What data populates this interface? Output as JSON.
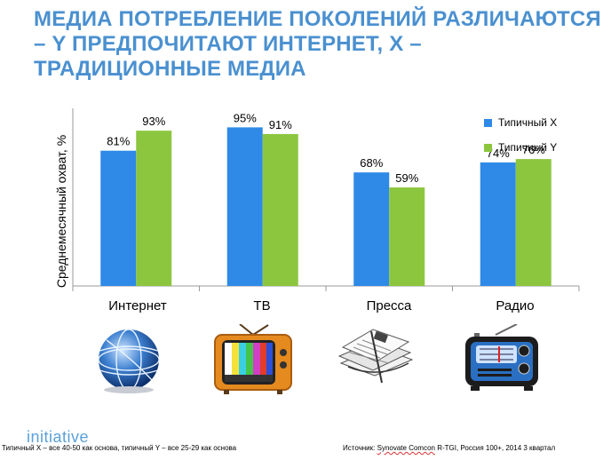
{
  "title": "МЕДИА ПОТРЕБЛЕНИЕ ПОКОЛЕНИЙ РАЗЛИЧАЮТСЯ – Y ПРЕДПОЧИТАЮТ ИНТЕРНЕТ, X – ТРАДИЦИОННЫЕ МЕДИА",
  "chart_data": {
    "type": "bar",
    "ylabel": "Среднемесячный охват, %",
    "categories": [
      "Интернет",
      "ТВ",
      "Пресса",
      "Радио"
    ],
    "ylim": [
      0,
      100
    ],
    "grid": false,
    "legend_position": "top-right",
    "series": [
      {
        "name": "Типичный X",
        "color": "#2e8ae6",
        "values": [
          81,
          95,
          68,
          74
        ],
        "labels": [
          "81%",
          "95%",
          "68%",
          "74%"
        ]
      },
      {
        "name": "Типичный Y",
        "color": "#8cc63f",
        "values": [
          93,
          91,
          59,
          76
        ],
        "labels": [
          "93%",
          "91%",
          "59%",
          "76%"
        ]
      }
    ]
  },
  "icons": [
    "globe-icon",
    "tv-icon",
    "newspaper-icon",
    "radio-icon"
  ],
  "logo": "initiative",
  "footnote_left": "Типичный X – все 40-50 как основа, типичный Y – все 25-29 как основа",
  "footnote_right_prefix": "Источник: ",
  "footnote_right_source": "Synovate Comcon",
  "footnote_right_suffix": " R-TGI, Россия 100+, 2014 3 квартал"
}
